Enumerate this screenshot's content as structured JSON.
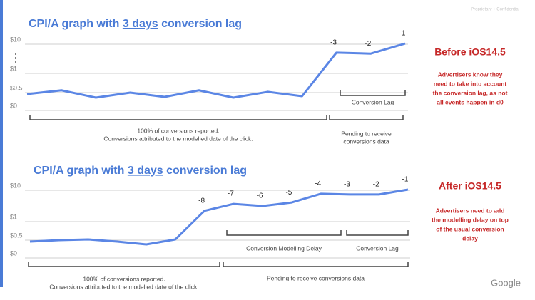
{
  "header": {
    "confidential": "Proprietary + Confidential"
  },
  "chart_data": [
    {
      "type": "line",
      "title_parts": [
        "CPI/A graph with ",
        "3 days",
        " conversion lag"
      ],
      "categories": [
        null,
        null,
        null,
        null,
        null,
        null,
        null,
        null,
        null,
        null,
        null,
        null
      ],
      "series": [
        {
          "color": "#5b86e5",
          "values": [
            0.46,
            0.56,
            0.36,
            0.5,
            0.38,
            0.56,
            0.36,
            0.52,
            0.4,
            7.4,
            7.1,
            10.2
          ]
        }
      ],
      "point_labels": [
        null,
        null,
        null,
        null,
        null,
        null,
        null,
        null,
        null,
        "-3",
        "-2",
        "-1"
      ],
      "ylim": [
        0,
        10
      ],
      "yticks": [
        {
          "value": 0,
          "label": "$0"
        },
        {
          "value": 0.5,
          "label": "$0.5"
        },
        {
          "value": 1,
          "label": "$1"
        },
        {
          "value": 10,
          "label": "$10"
        }
      ],
      "grid": true,
      "brackets": [
        {
          "lines": [
            "100% of conversions reported.",
            "Conversions attributed to the modelled date of the click."
          ]
        },
        {
          "lines": [
            "Pending to receive",
            "conversions data"
          ]
        },
        {
          "lines": [
            "Conversion Lag"
          ]
        }
      ],
      "side": {
        "heading": "Before iOS14.5",
        "lines": [
          "Advertisers know they",
          "need to take into account",
          "the conversion lag, as not",
          "all events happen in d0"
        ]
      }
    },
    {
      "type": "line",
      "title_parts": [
        "CPI/A graph with ",
        "3 days",
        " conversion lag"
      ],
      "categories": [
        null,
        null,
        null,
        null,
        null,
        null,
        null,
        null,
        null,
        null,
        null,
        null,
        null,
        null
      ],
      "series": [
        {
          "color": "#5b86e5",
          "values": [
            0.46,
            0.5,
            0.52,
            0.46,
            0.38,
            0.52,
            4.1,
            6.1,
            5.5,
            6.5,
            9.0,
            8.8,
            8.8,
            10.2
          ]
        }
      ],
      "point_labels": [
        null,
        null,
        null,
        null,
        null,
        null,
        "-8",
        "-7",
        "-6",
        "-5",
        "-4",
        "-3",
        "-2",
        "-1"
      ],
      "ylim": [
        0,
        10
      ],
      "yticks": [
        {
          "value": 0,
          "label": "$0"
        },
        {
          "value": 0.5,
          "label": "$0.5"
        },
        {
          "value": 1,
          "label": "$1"
        },
        {
          "value": 10,
          "label": "$10"
        }
      ],
      "grid": true,
      "brackets": [
        {
          "lines": [
            "Conversion Modelling Delay"
          ]
        },
        {
          "lines": [
            "Conversion Lag"
          ]
        },
        {
          "lines": [
            "100% of conversions reported.",
            "Conversions attributed to the modelled date of the click."
          ]
        },
        {
          "lines": [
            "Pending to receive conversions data"
          ]
        }
      ],
      "side": {
        "heading": "After iOS14.5",
        "lines": [
          "Advertisers need to add",
          "the modelling delay on top",
          "of the usual conversion",
          "delay"
        ]
      }
    }
  ],
  "footer": {
    "logo": "Google"
  }
}
